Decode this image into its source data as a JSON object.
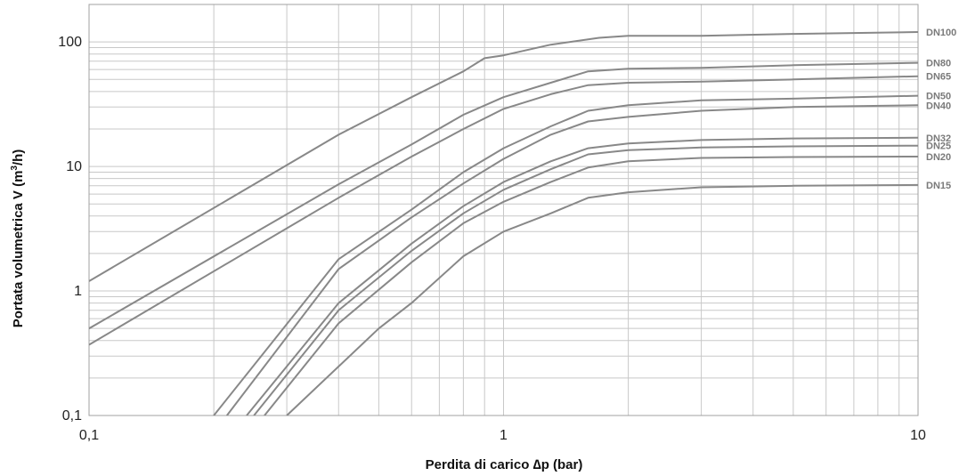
{
  "chart_data": {
    "type": "line",
    "x_scale": "log",
    "y_scale": "log",
    "xlim": [
      0.1,
      10
    ],
    "ylim": [
      0.1,
      200
    ],
    "grid": true,
    "xlabel": "Perdita di carico ∆p (bar)",
    "ylabel_main": "Portata volumetrica V (m",
    "ylabel_sup": "3",
    "ylabel_tail": "/h)",
    "x_tick_labels": [
      {
        "value": 0.1,
        "label": "0,1"
      },
      {
        "value": 1,
        "label": "1"
      },
      {
        "value": 10,
        "label": "10"
      }
    ],
    "y_tick_labels": [
      {
        "value": 0.1,
        "label": "0,1"
      },
      {
        "value": 1,
        "label": "1"
      },
      {
        "value": 10,
        "label": "10"
      },
      {
        "value": 100,
        "label": "100"
      }
    ],
    "line_color": "#888888",
    "grid_color": "#c8c8c8",
    "series": [
      {
        "name": "DN100",
        "points": [
          [
            0.1,
            1.2
          ],
          [
            0.4,
            18
          ],
          [
            0.6,
            36
          ],
          [
            0.8,
            58
          ],
          [
            0.9,
            74
          ],
          [
            1,
            78
          ],
          [
            1.3,
            95
          ],
          [
            1.7,
            108
          ],
          [
            2,
            112
          ],
          [
            3,
            112
          ],
          [
            5,
            116
          ],
          [
            10,
            120
          ]
        ]
      },
      {
        "name": "DN80",
        "points": [
          [
            0.1,
            0.5
          ],
          [
            0.4,
            7.2
          ],
          [
            0.6,
            15
          ],
          [
            0.8,
            26
          ],
          [
            1,
            36
          ],
          [
            1.3,
            47
          ],
          [
            1.6,
            58
          ],
          [
            2,
            61
          ],
          [
            3,
            62
          ],
          [
            5,
            65
          ],
          [
            10,
            68
          ]
        ]
      },
      {
        "name": "DN65",
        "points": [
          [
            0.1,
            0.37
          ],
          [
            0.4,
            5.6
          ],
          [
            0.6,
            12
          ],
          [
            0.8,
            20
          ],
          [
            1,
            29
          ],
          [
            1.3,
            38
          ],
          [
            1.6,
            45
          ],
          [
            2,
            47
          ],
          [
            3,
            48
          ],
          [
            5,
            50
          ],
          [
            10,
            53
          ]
        ]
      },
      {
        "name": "DN50",
        "points": [
          [
            0.2,
            0.1
          ],
          [
            0.4,
            1.8
          ],
          [
            0.6,
            4.5
          ],
          [
            0.8,
            9
          ],
          [
            1,
            14
          ],
          [
            1.3,
            21
          ],
          [
            1.6,
            28
          ],
          [
            2,
            31
          ],
          [
            3,
            34
          ],
          [
            5,
            35
          ],
          [
            10,
            37
          ]
        ]
      },
      {
        "name": "DN40",
        "points": [
          [
            0.215,
            0.1
          ],
          [
            0.4,
            1.5
          ],
          [
            0.6,
            3.9
          ],
          [
            0.8,
            7.3
          ],
          [
            1,
            11.5
          ],
          [
            1.3,
            18
          ],
          [
            1.6,
            23
          ],
          [
            2,
            25
          ],
          [
            3,
            28
          ],
          [
            5,
            30
          ],
          [
            10,
            31
          ]
        ]
      },
      {
        "name": "DN32",
        "points": [
          [
            0.24,
            0.1
          ],
          [
            0.4,
            0.8
          ],
          [
            0.6,
            2.4
          ],
          [
            0.8,
            4.8
          ],
          [
            1,
            7.5
          ],
          [
            1.3,
            11
          ],
          [
            1.6,
            14
          ],
          [
            2,
            15.3
          ],
          [
            3,
            16.3
          ],
          [
            5,
            16.8
          ],
          [
            10,
            17
          ]
        ]
      },
      {
        "name": "DN25",
        "points": [
          [
            0.25,
            0.1
          ],
          [
            0.4,
            0.7
          ],
          [
            0.6,
            2.1
          ],
          [
            0.8,
            4.2
          ],
          [
            1,
            6.5
          ],
          [
            1.3,
            9.5
          ],
          [
            1.6,
            12.5
          ],
          [
            2,
            13.5
          ],
          [
            3,
            14.2
          ],
          [
            5,
            14.5
          ],
          [
            10,
            14.7
          ]
        ]
      },
      {
        "name": "DN20",
        "points": [
          [
            0.265,
            0.1
          ],
          [
            0.4,
            0.55
          ],
          [
            0.6,
            1.7
          ],
          [
            0.8,
            3.5
          ],
          [
            1,
            5.2
          ],
          [
            1.3,
            7.5
          ],
          [
            1.6,
            9.8
          ],
          [
            2,
            11
          ],
          [
            3,
            11.7
          ],
          [
            5,
            11.9
          ],
          [
            10,
            12
          ]
        ]
      },
      {
        "name": "DN15",
        "points": [
          [
            0.3,
            0.1
          ],
          [
            0.5,
            0.5
          ],
          [
            0.6,
            0.8
          ],
          [
            0.8,
            1.9
          ],
          [
            1,
            3
          ],
          [
            1.3,
            4.2
          ],
          [
            1.6,
            5.6
          ],
          [
            2,
            6.2
          ],
          [
            3,
            6.8
          ],
          [
            5,
            7
          ],
          [
            10,
            7.1
          ]
        ]
      }
    ]
  }
}
